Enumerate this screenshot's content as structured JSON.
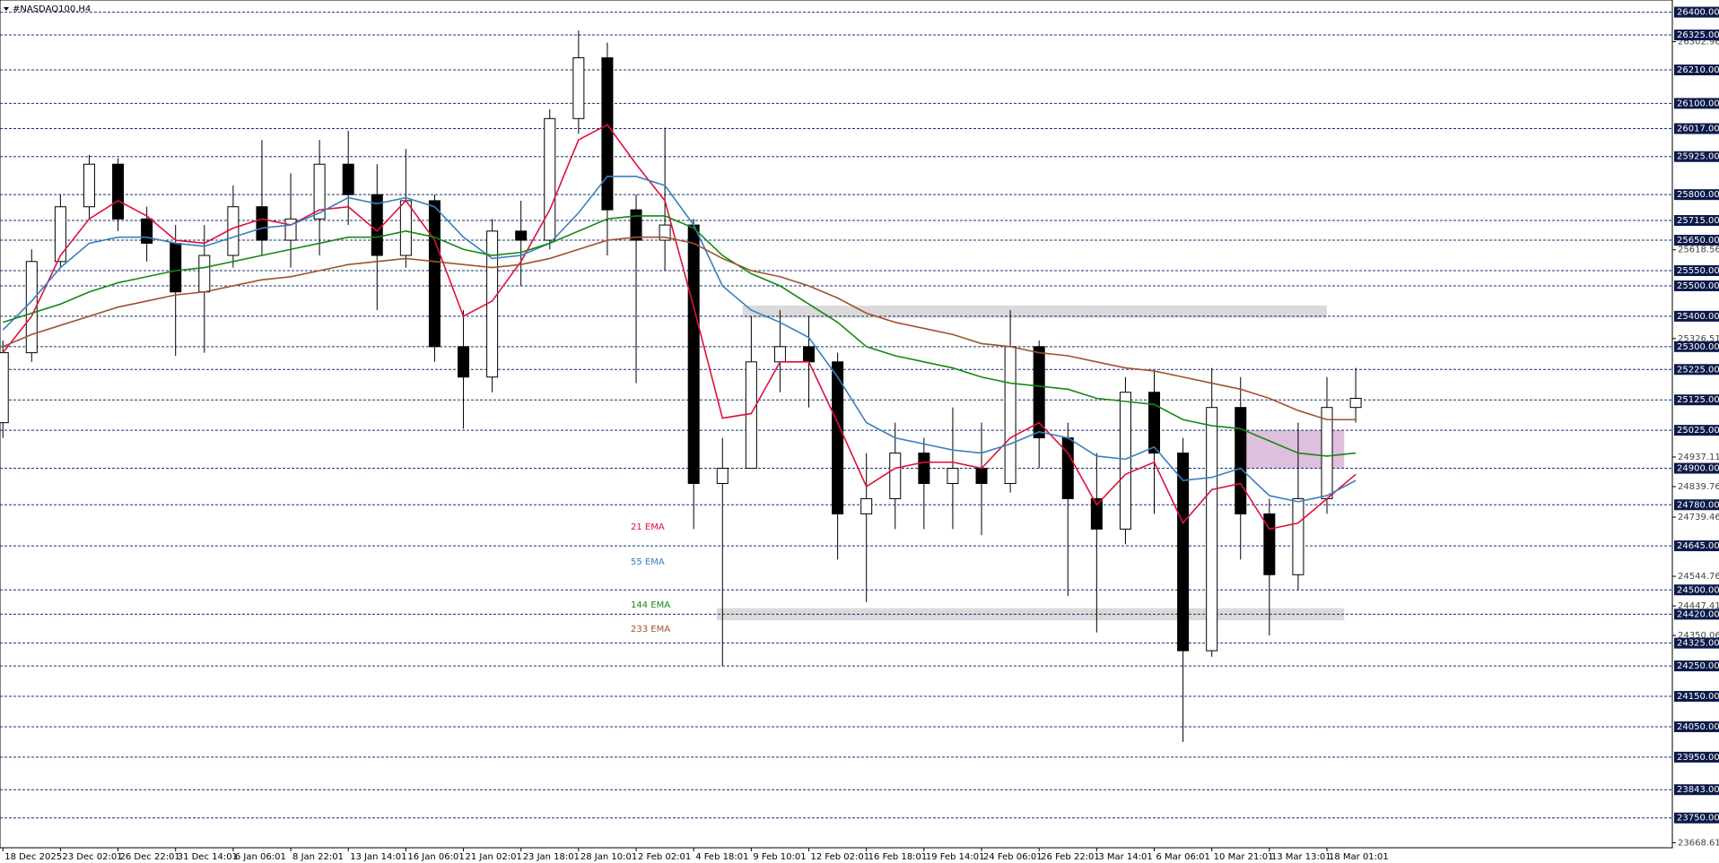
{
  "chart_data": {
    "type": "candlestick",
    "title": "#NASDAQ100,H4",
    "xlim": [
      -0.1,
      58
    ],
    "ylim": [
      23652,
      26440
    ],
    "xticks": [
      {
        "value": 0,
        "label": "18 Dec 2025"
      },
      {
        "value": 2,
        "label": "23 Dec 02:01"
      },
      {
        "value": 4,
        "label": "26 Dec 22:01"
      },
      {
        "value": 6,
        "label": "31 Dec 14:01"
      },
      {
        "value": 8,
        "label": "6 Jan 06:01"
      },
      {
        "value": 10,
        "label": "8 Jan 22:01"
      },
      {
        "value": 12,
        "label": "13 Jan 14:01"
      },
      {
        "value": 14,
        "label": "16 Jan 06:01"
      },
      {
        "value": 16,
        "label": "21 Jan 02:01"
      },
      {
        "value": 18,
        "label": "23 Jan 18:01"
      },
      {
        "value": 20,
        "label": "28 Jan 10:01"
      },
      {
        "value": 22,
        "label": "2 Feb 02:01"
      },
      {
        "value": 24,
        "label": "4 Feb 18:01"
      },
      {
        "value": 26,
        "label": "9 Feb 10:01"
      },
      {
        "value": 28,
        "label": "12 Feb 02:01"
      },
      {
        "value": 30,
        "label": "16 Feb 18:01"
      },
      {
        "value": 32,
        "label": "19 Feb 14:01"
      },
      {
        "value": 34,
        "label": "24 Feb 06:01"
      },
      {
        "value": 36,
        "label": "26 Feb 22:01"
      },
      {
        "value": 38,
        "label": "3 Mar 14:01"
      },
      {
        "value": 40,
        "label": "6 Mar 06:01"
      },
      {
        "value": 42,
        "label": "10 Mar 21:01"
      },
      {
        "value": 44,
        "label": "13 Mar 13:01"
      },
      {
        "value": 46,
        "label": "18 Mar 01:01"
      }
    ],
    "level_lines": [
      {
        "value": 26400,
        "label": "26400.00"
      },
      {
        "value": 26325,
        "label": "26325.00"
      },
      {
        "value": 26210,
        "label": "26210.00"
      },
      {
        "value": 26100,
        "label": "26100.00"
      },
      {
        "value": 26017,
        "label": "26017.00"
      },
      {
        "value": 25925,
        "label": "25925.00"
      },
      {
        "value": 25800,
        "label": "25800.00"
      },
      {
        "value": 25715,
        "label": "25715.00"
      },
      {
        "value": 25650,
        "label": "25650.00"
      },
      {
        "value": 25550,
        "label": "25550.00"
      },
      {
        "value": 25500,
        "label": "25500.00"
      },
      {
        "value": 25400,
        "label": "25400.00"
      },
      {
        "value": 25300,
        "label": "25300.00"
      },
      {
        "value": 25225,
        "label": "25225.00"
      },
      {
        "value": 25125,
        "label": "25125.00"
      },
      {
        "value": 25025,
        "label": "25025.00"
      },
      {
        "value": 24900,
        "label": "24900.00"
      },
      {
        "value": 24780,
        "label": "24780.00"
      },
      {
        "value": 24645,
        "label": "24645.00"
      },
      {
        "value": 24500,
        "label": "24500.00"
      },
      {
        "value": 24420,
        "label": "24420.00"
      },
      {
        "value": 24325,
        "label": "24325.00"
      },
      {
        "value": 24250,
        "label": "24250.00"
      },
      {
        "value": 24150,
        "label": "24150.00"
      },
      {
        "value": 24050,
        "label": "24050.00"
      },
      {
        "value": 23950,
        "label": "23950.00"
      },
      {
        "value": 23843,
        "label": "23843.00"
      },
      {
        "value": 23750,
        "label": "23750.00"
      }
    ],
    "yticks": [
      26302.96,
      25618.56,
      25326.51,
      24937.11,
      24839.76,
      24739.46,
      24544.76,
      24447.41,
      24350.06,
      23668.61
    ],
    "candles": {
      "open": [
        25050,
        25280,
        25580,
        25760,
        25900,
        25720,
        25640,
        25480,
        25600,
        25760,
        25650,
        25720,
        25900,
        25800,
        25600,
        25780,
        25300,
        25200,
        25680,
        25650,
        26050,
        26250,
        25750,
        25650,
        25700,
        24850,
        24900,
        25250,
        25300,
        25250,
        24750,
        24800,
        24950,
        24850,
        24900,
        24850,
        25300,
        25000,
        24800,
        24700,
        25150,
        24950,
        24300,
        25100,
        24750,
        24550,
        24800,
        25100
      ],
      "high": [
        25320,
        25620,
        25800,
        25930,
        25920,
        25760,
        25700,
        25700,
        25830,
        25980,
        25870,
        25980,
        26010,
        25900,
        25950,
        25800,
        25420,
        25720,
        25780,
        26080,
        26340,
        26300,
        25800,
        26020,
        25720,
        25000,
        25400,
        25420,
        25400,
        25280,
        24950,
        25050,
        25000,
        25100,
        25050,
        25420,
        25320,
        25050,
        24950,
        25200,
        25220,
        25000,
        25230,
        25200,
        24800,
        25050,
        25200,
        25230
      ],
      "low": [
        25000,
        25250,
        25560,
        25720,
        25680,
        25580,
        25270,
        25280,
        25560,
        25600,
        25560,
        25600,
        25700,
        25420,
        25560,
        25250,
        25030,
        25150,
        25500,
        25620,
        26000,
        25600,
        25180,
        25550,
        24700,
        24250,
        24900,
        25150,
        25100,
        24600,
        24460,
        24700,
        24700,
        24700,
        24680,
        24820,
        24900,
        24480,
        24360,
        24650,
        24750,
        24000,
        24280,
        24600,
        24350,
        24500,
        24750,
        25050
      ],
      "close": [
        25280,
        25580,
        25760,
        25900,
        25720,
        25640,
        25480,
        25600,
        25760,
        25650,
        25720,
        25900,
        25800,
        25600,
        25780,
        25300,
        25200,
        25680,
        25650,
        26050,
        26250,
        25750,
        25650,
        25700,
        24850,
        24900,
        25250,
        25300,
        25250,
        24750,
        24800,
        24950,
        24850,
        24900,
        24850,
        25300,
        25000,
        24800,
        24700,
        25150,
        24950,
        24300,
        25100,
        24750,
        24550,
        24800,
        25100,
        25130
      ]
    },
    "series": [
      {
        "name": "21 EMA",
        "color": "#e0103a",
        "values": [
          25280,
          25400,
          25600,
          25720,
          25780,
          25730,
          25650,
          25640,
          25690,
          25720,
          25700,
          25750,
          25760,
          25680,
          25780,
          25650,
          25400,
          25450,
          25580,
          25750,
          25980,
          26030,
          25900,
          25780,
          25430,
          25065,
          25080,
          25250,
          25250,
          25050,
          24840,
          24900,
          24920,
          24920,
          24900,
          25000,
          25050,
          24950,
          24780,
          24880,
          24920,
          24720,
          24830,
          24850,
          24700,
          24720,
          24800,
          24880
        ]
      },
      {
        "name": "55 EMA",
        "color": "#3a7fc0",
        "values": [
          25355,
          25450,
          25560,
          25640,
          25660,
          25660,
          25640,
          25630,
          25660,
          25690,
          25700,
          25740,
          25790,
          25770,
          25790,
          25760,
          25660,
          25590,
          25600,
          25640,
          25740,
          25860,
          25860,
          25830,
          25700,
          25500,
          25420,
          25380,
          25330,
          25200,
          25050,
          25000,
          24980,
          24960,
          24950,
          24980,
          25020,
          25000,
          24940,
          24930,
          24970,
          24860,
          24870,
          24900,
          24810,
          24790,
          24810,
          24860
        ]
      },
      {
        "name": "144 EMA",
        "color": "#138a13",
        "values": [
          25380,
          25410,
          25440,
          25480,
          25510,
          25530,
          25550,
          25560,
          25580,
          25600,
          25620,
          25640,
          25660,
          25660,
          25680,
          25660,
          25620,
          25600,
          25610,
          25640,
          25680,
          25720,
          25730,
          25730,
          25690,
          25600,
          25540,
          25500,
          25440,
          25380,
          25300,
          25270,
          25250,
          25230,
          25200,
          25180,
          25170,
          25160,
          25130,
          25120,
          25110,
          25060,
          25040,
          25030,
          24990,
          24950,
          24940,
          24950
        ]
      },
      {
        "name": "233 EMA",
        "color": "#a0522d",
        "values": [
          25300,
          25340,
          25370,
          25400,
          25430,
          25450,
          25470,
          25480,
          25500,
          25520,
          25530,
          25550,
          25570,
          25580,
          25590,
          25580,
          25570,
          25560,
          25570,
          25590,
          25620,
          25650,
          25660,
          25660,
          25640,
          25590,
          25550,
          25530,
          25500,
          25460,
          25410,
          25380,
          25360,
          25340,
          25310,
          25300,
          25280,
          25270,
          25250,
          25230,
          25220,
          25200,
          25180,
          25160,
          25130,
          25090,
          25060,
          25060
        ]
      }
    ],
    "zones": [
      {
        "x": [
          25.7,
          46
        ],
        "y": [
          25395,
          25435
        ],
        "color": "#d3d3d3"
      },
      {
        "x": [
          24.8,
          46.6
        ],
        "y": [
          24400,
          24440
        ],
        "color": "#d3d3d3"
      },
      {
        "x": [
          43,
          46.6
        ],
        "y": [
          24900,
          25025
        ],
        "color": "#d8b4d8"
      }
    ]
  }
}
